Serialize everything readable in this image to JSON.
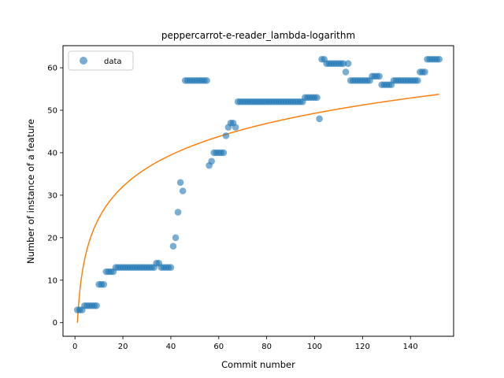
{
  "chart_data": {
    "type": "scatter",
    "title": "peppercarrot-e-reader_lambda-logarithm",
    "xlabel": "Commit number",
    "ylabel": "Number of instance of a feature",
    "xlim": [
      -5,
      158
    ],
    "ylim": [
      -3.2,
      65.2
    ],
    "x_ticks": [
      0,
      20,
      40,
      60,
      80,
      100,
      120,
      140
    ],
    "y_ticks": [
      0,
      10,
      20,
      30,
      40,
      50,
      60
    ],
    "grid": false,
    "legend_position": "top-left",
    "colors": {
      "data": "#1f77b4",
      "fit": "#ff7f0e"
    },
    "series": [
      {
        "name": "data",
        "kind": "scatter",
        "x": [
          1,
          2,
          3,
          4,
          5,
          6,
          7,
          8,
          9,
          10,
          11,
          12,
          13,
          14,
          15,
          16,
          17,
          18,
          19,
          20,
          21,
          22,
          23,
          24,
          25,
          26,
          27,
          28,
          29,
          30,
          31,
          32,
          33,
          34,
          35,
          36,
          37,
          38,
          39,
          40,
          41,
          42,
          43,
          44,
          45,
          46,
          47,
          48,
          49,
          50,
          51,
          52,
          53,
          54,
          55,
          56,
          57,
          58,
          59,
          60,
          61,
          62,
          63,
          64,
          65,
          66,
          67,
          68,
          69,
          70,
          71,
          72,
          73,
          74,
          75,
          76,
          77,
          78,
          79,
          80,
          81,
          82,
          83,
          84,
          85,
          86,
          87,
          88,
          89,
          90,
          91,
          92,
          93,
          94,
          95,
          96,
          97,
          98,
          99,
          100,
          101,
          102,
          103,
          104,
          105,
          106,
          107,
          108,
          109,
          110,
          111,
          112,
          113,
          114,
          115,
          116,
          117,
          118,
          119,
          120,
          121,
          122,
          123,
          124,
          125,
          126,
          127,
          128,
          129,
          130,
          131,
          132,
          133,
          134,
          135,
          136,
          137,
          138,
          139,
          140,
          141,
          142,
          143,
          144,
          145,
          146,
          147,
          148,
          149,
          150,
          151,
          152
        ],
        "y": [
          3,
          3,
          3,
          4,
          4,
          4,
          4,
          4,
          4,
          9,
          9,
          9,
          12,
          12,
          12,
          12,
          13,
          13,
          13,
          13,
          13,
          13,
          13,
          13,
          13,
          13,
          13,
          13,
          13,
          13,
          13,
          13,
          13,
          14,
          14,
          13,
          13,
          13,
          13,
          13,
          18,
          20,
          26,
          33,
          31,
          57,
          57,
          57,
          57,
          57,
          57,
          57,
          57,
          57,
          57,
          37,
          38,
          40,
          40,
          40,
          40,
          40,
          44,
          46,
          47,
          47,
          46,
          52,
          52,
          52,
          52,
          52,
          52,
          52,
          52,
          52,
          52,
          52,
          52,
          52,
          52,
          52,
          52,
          52,
          52,
          52,
          52,
          52,
          52,
          52,
          52,
          52,
          52,
          52,
          52,
          53,
          53,
          53,
          53,
          53,
          53,
          48,
          62,
          62,
          61,
          61,
          61,
          61,
          61,
          61,
          61,
          61,
          59,
          61,
          57,
          57,
          57,
          57,
          57,
          57,
          57,
          57,
          57,
          58,
          58,
          58,
          58,
          56,
          56,
          56,
          56,
          56,
          57,
          57,
          57,
          57,
          57,
          57,
          57,
          57,
          57,
          57,
          57,
          59,
          59,
          59,
          62,
          62,
          62,
          62,
          62,
          62
        ]
      },
      {
        "name": "",
        "kind": "line",
        "function": "y = 10.7 * ln(x)",
        "x_range": [
          1,
          152
        ]
      }
    ]
  }
}
